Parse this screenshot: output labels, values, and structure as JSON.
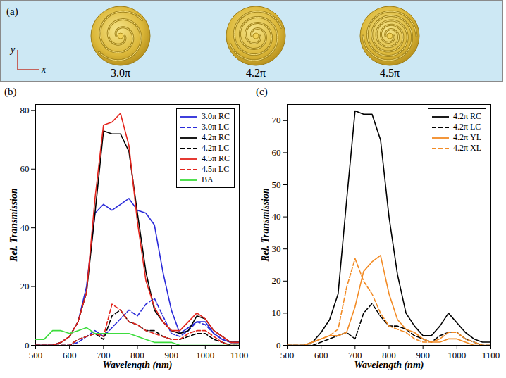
{
  "panel_a": {
    "panel_label": "(a)",
    "axes": [
      "y",
      "x"
    ],
    "structures": [
      {
        "label": "3.0π"
      },
      {
        "label": "4.2π"
      },
      {
        "label": "4.5π"
      }
    ]
  },
  "chart_data": [
    {
      "type": "line",
      "panel_label": "(b)",
      "x_label": "Wavelength (nm)",
      "y_label": "Rel. Transmission",
      "x": [
        500,
        525,
        550,
        575,
        600,
        625,
        650,
        675,
        700,
        725,
        750,
        775,
        800,
        825,
        850,
        875,
        900,
        925,
        950,
        975,
        1000,
        1025,
        1050,
        1075,
        1100
      ],
      "xlim": [
        500,
        1100
      ],
      "xticks": [
        500,
        600,
        700,
        800,
        900,
        1000,
        1100
      ],
      "ylim": [
        0,
        82
      ],
      "yticks": [
        0,
        20,
        40,
        60,
        80
      ],
      "grid": false,
      "legend": "top-right",
      "series": [
        {
          "name": "3.0π RC",
          "color": "#2a2ad9",
          "line_style": "solid",
          "values": [
            0,
            0,
            0,
            1,
            3,
            8,
            20,
            45,
            48,
            46,
            48,
            50,
            46,
            45,
            41,
            25,
            12,
            4,
            6,
            8,
            8,
            4,
            2,
            1,
            1
          ]
        },
        {
          "name": "3.0π LC",
          "color": "#2a2ad9",
          "line_style": "dashed",
          "values": [
            0,
            0,
            0,
            0,
            0,
            1,
            3,
            5,
            3,
            6,
            9,
            12,
            10,
            14,
            16,
            10,
            4,
            3,
            5,
            8,
            7,
            4,
            2,
            1,
            1
          ]
        },
        {
          "name": "4.2π RC",
          "color": "#000000",
          "line_style": "solid",
          "values": [
            0,
            0,
            0,
            1,
            3,
            8,
            18,
            45,
            73,
            72,
            72,
            66,
            45,
            25,
            12,
            8,
            5,
            4,
            5,
            10,
            9,
            5,
            3,
            1,
            1
          ]
        },
        {
          "name": "4.2π LC",
          "color": "#000000",
          "line_style": "dashed",
          "values": [
            0,
            0,
            0,
            0,
            0,
            2,
            3,
            4,
            2,
            10,
            12,
            8,
            7,
            5,
            5,
            3,
            2,
            2,
            3,
            4,
            4,
            2,
            1,
            0,
            0
          ]
        },
        {
          "name": "4.5π RC",
          "color": "#e3241c",
          "line_style": "solid",
          "values": [
            0,
            0,
            0,
            1,
            3,
            8,
            18,
            50,
            75,
            76,
            79,
            68,
            42,
            22,
            13,
            8,
            5,
            5,
            8,
            11,
            9,
            5,
            3,
            1,
            1
          ]
        },
        {
          "name": "4.5π LC",
          "color": "#e3241c",
          "line_style": "dashed",
          "values": [
            0,
            0,
            0,
            0,
            0,
            2,
            3,
            4,
            3,
            14,
            12,
            8,
            7,
            5,
            4,
            3,
            2,
            2,
            4,
            5,
            5,
            3,
            1,
            0,
            0
          ]
        },
        {
          "name": "BA",
          "color": "#3ddc3d",
          "line_style": "solid",
          "values": [
            2,
            2,
            5,
            5,
            4,
            5,
            6,
            4,
            4,
            4,
            4,
            4,
            3,
            2,
            1,
            1,
            1,
            0,
            0,
            0,
            0,
            0,
            0,
            0,
            0
          ]
        }
      ]
    },
    {
      "type": "line",
      "panel_label": "(c)",
      "x_label": "Wavelength (nm)",
      "y_label": "Rel. Transmission",
      "x": [
        500,
        525,
        550,
        575,
        600,
        625,
        650,
        675,
        700,
        725,
        750,
        775,
        800,
        825,
        850,
        875,
        900,
        925,
        950,
        975,
        1000,
        1025,
        1050,
        1075,
        1100
      ],
      "xlim": [
        500,
        1100
      ],
      "xticks": [
        500,
        600,
        700,
        800,
        900,
        1000,
        1100
      ],
      "ylim": [
        0,
        75
      ],
      "yticks": [
        0,
        10,
        20,
        30,
        40,
        50,
        60,
        70
      ],
      "grid": false,
      "legend": "top-right",
      "series": [
        {
          "name": "4.2π RC",
          "color": "#000000",
          "line_style": "solid",
          "values": [
            0,
            0,
            0,
            1,
            4,
            8,
            16,
            45,
            73,
            72,
            72,
            64,
            40,
            22,
            10,
            6,
            3,
            3,
            6,
            10,
            7,
            4,
            2,
            1,
            1
          ]
        },
        {
          "name": "4.2π LC",
          "color": "#000000",
          "line_style": "dashed",
          "values": [
            0,
            0,
            0,
            0,
            1,
            2,
            3,
            4,
            2,
            10,
            13,
            9,
            6,
            6,
            5,
            3,
            2,
            1,
            3,
            4,
            4,
            2,
            1,
            0,
            0
          ]
        },
        {
          "name": "4.2π YL",
          "color": "#f28b25",
          "line_style": "solid",
          "values": [
            0,
            0,
            0,
            1,
            2,
            3,
            3,
            4,
            12,
            23,
            26,
            28,
            16,
            8,
            5,
            4,
            2,
            1,
            1,
            2,
            2,
            1,
            0,
            0,
            0
          ]
        },
        {
          "name": "4.2π XL",
          "color": "#f28b25",
          "line_style": "dashed",
          "values": [
            0,
            0,
            0,
            1,
            2,
            3,
            5,
            18,
            27,
            20,
            16,
            10,
            6,
            5,
            4,
            2,
            1,
            1,
            2,
            4,
            4,
            2,
            1,
            0,
            0
          ]
        }
      ]
    }
  ]
}
